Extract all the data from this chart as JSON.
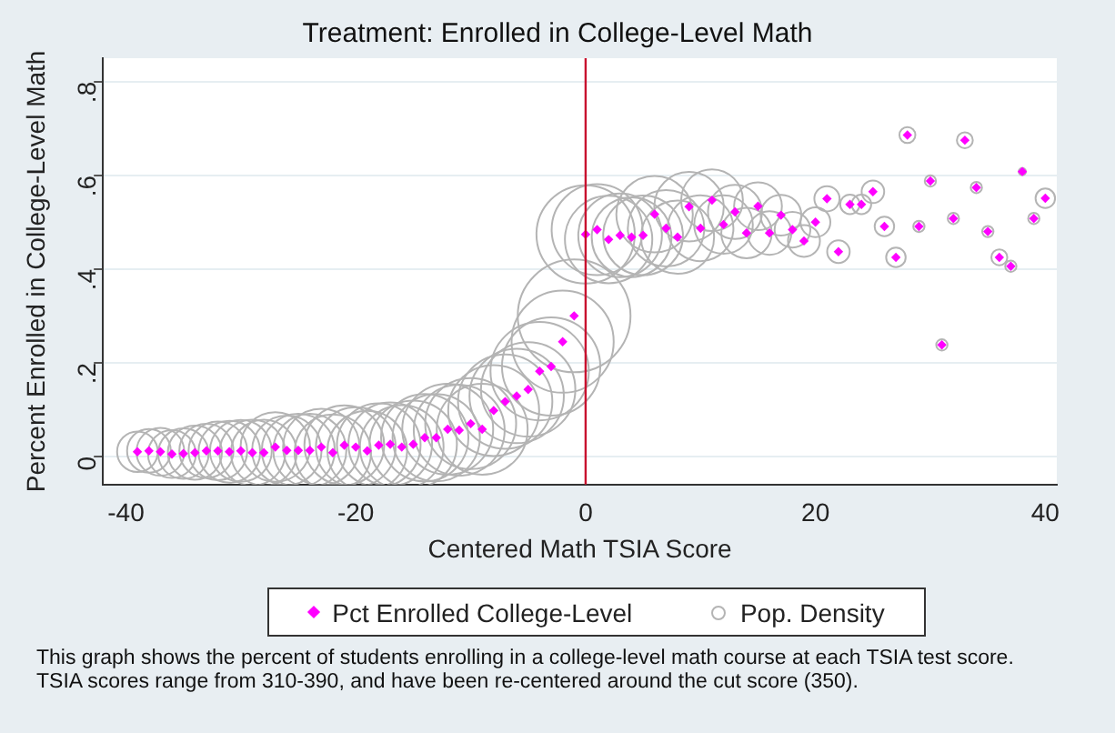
{
  "chart_data": {
    "type": "scatter",
    "title": "Treatment: Enrolled in College-Level Math",
    "xlabel": "Centered Math TSIA Score",
    "ylabel": "Percent Enrolled in College-Level Math",
    "x": [
      -39,
      -38,
      -37,
      -36,
      -35,
      -34,
      -33,
      -32,
      -31,
      -30,
      -29,
      -28,
      -27,
      -26,
      -25,
      -24,
      -23,
      -22,
      -21,
      -20,
      -19,
      -18,
      -17,
      -16,
      -15,
      -14,
      -13,
      -12,
      -11,
      -10,
      -9,
      -8,
      -7,
      -6,
      -5,
      -4,
      -3,
      -2,
      -1,
      0,
      1,
      2,
      3,
      4,
      5,
      6,
      7,
      8,
      9,
      10,
      11,
      12,
      13,
      14,
      15,
      16,
      17,
      18,
      19,
      20,
      21,
      22,
      23,
      24,
      25,
      26,
      27,
      28,
      29,
      30,
      31,
      32,
      33,
      34,
      35,
      36,
      37,
      38,
      39,
      40
    ],
    "series": [
      {
        "name": "Pop. Density",
        "type": "bubble",
        "color": "#b4b4b4",
        "values": [
          0.01,
          0.012,
          0.01,
          0.005,
          0.006,
          0.008,
          0.012,
          0.012,
          0.01,
          0.012,
          0.008,
          0.008,
          0.02,
          0.013,
          0.013,
          0.013,
          0.02,
          0.008,
          0.024,
          0.02,
          0.012,
          0.024,
          0.026,
          0.02,
          0.026,
          0.04,
          0.04,
          0.058,
          0.056,
          0.07,
          0.058,
          0.098,
          0.117,
          0.129,
          0.143,
          0.182,
          0.192,
          0.245,
          0.3,
          0.474,
          0.484,
          0.463,
          0.472,
          0.468,
          0.472,
          0.517,
          0.487,
          0.468,
          0.533,
          0.487,
          0.547,
          0.495,
          0.522,
          0.477,
          0.534,
          0.477,
          0.515,
          0.484,
          0.46,
          0.5,
          0.55,
          0.437,
          0.538,
          0.538,
          0.565,
          0.491,
          0.425,
          0.686,
          0.491,
          0.588,
          0.238,
          0.508,
          0.675,
          0.574,
          0.48,
          0.425,
          0.406,
          0.608,
          0.508,
          0.551
        ],
        "sizes": [
          0.13,
          0.15,
          0.18,
          0.18,
          0.2,
          0.23,
          0.23,
          0.27,
          0.3,
          0.3,
          0.34,
          0.34,
          0.38,
          0.38,
          0.42,
          0.42,
          0.46,
          0.46,
          0.5,
          0.5,
          0.5,
          0.55,
          0.55,
          0.55,
          0.6,
          0.6,
          0.6,
          0.65,
          0.65,
          0.65,
          0.65,
          0.65,
          0.7,
          0.7,
          0.7,
          0.76,
          0.76,
          0.82,
          1,
          0.76,
          0.65,
          0.6,
          0.55,
          0.5,
          0.5,
          0.46,
          0.46,
          0.42,
          0.38,
          0.34,
          0.3,
          0.27,
          0.23,
          0.2,
          0.18,
          0.15,
          0.13,
          0.1,
          0.08,
          0.07,
          0.05,
          0.04,
          0.03,
          0.03,
          0.04,
          0.03,
          0.03,
          0.02,
          0.01,
          0.01,
          0.01,
          0.01,
          0.02,
          0.01,
          0.01,
          0.02,
          0.01,
          0.004,
          0.01,
          0.03
        ]
      },
      {
        "name": "Pct Enrolled College-Level",
        "color": "#ff00ff",
        "marker": "diamond",
        "values": [
          0.01,
          0.012,
          0.01,
          0.005,
          0.006,
          0.008,
          0.012,
          0.012,
          0.01,
          0.012,
          0.008,
          0.008,
          0.02,
          0.013,
          0.013,
          0.013,
          0.02,
          0.008,
          0.024,
          0.02,
          0.012,
          0.024,
          0.026,
          0.02,
          0.026,
          0.04,
          0.04,
          0.058,
          0.056,
          0.07,
          0.058,
          0.098,
          0.117,
          0.129,
          0.143,
          0.182,
          0.192,
          0.245,
          0.3,
          0.474,
          0.484,
          0.463,
          0.472,
          0.468,
          0.472,
          0.517,
          0.487,
          0.468,
          0.533,
          0.487,
          0.547,
          0.495,
          0.522,
          0.477,
          0.534,
          0.477,
          0.515,
          0.484,
          0.46,
          0.5,
          0.55,
          0.437,
          0.538,
          0.538,
          0.565,
          0.491,
          0.425,
          0.686,
          0.491,
          0.588,
          0.238,
          0.508,
          0.675,
          0.574,
          0.48,
          0.425,
          0.406,
          0.608,
          0.508,
          0.551
        ]
      }
    ],
    "xlim": [
      -42,
      41
    ],
    "xticks": [
      -40,
      -20,
      0,
      20,
      40
    ],
    "ylim": [
      -0.06,
      0.85
    ],
    "yticks": [
      {
        "value": 0,
        "label": "0"
      },
      {
        "value": 0.2,
        "label": ".2"
      },
      {
        "value": 0.4,
        "label": ".4"
      },
      {
        "value": 0.6,
        "label": ".6"
      },
      {
        "value": 0.8,
        "label": ".8"
      }
    ],
    "grid": "y",
    "legend": "bottom",
    "ref_lines": [
      {
        "axis": "x",
        "value": 0,
        "color": "#c8102e"
      }
    ],
    "annotations": [
      "This graph shows the percent of students enrolling in a college-level math course at each TSIA test score. TSIA scores range from 310-390, and have been re-centered around the cut score (350)."
    ]
  }
}
